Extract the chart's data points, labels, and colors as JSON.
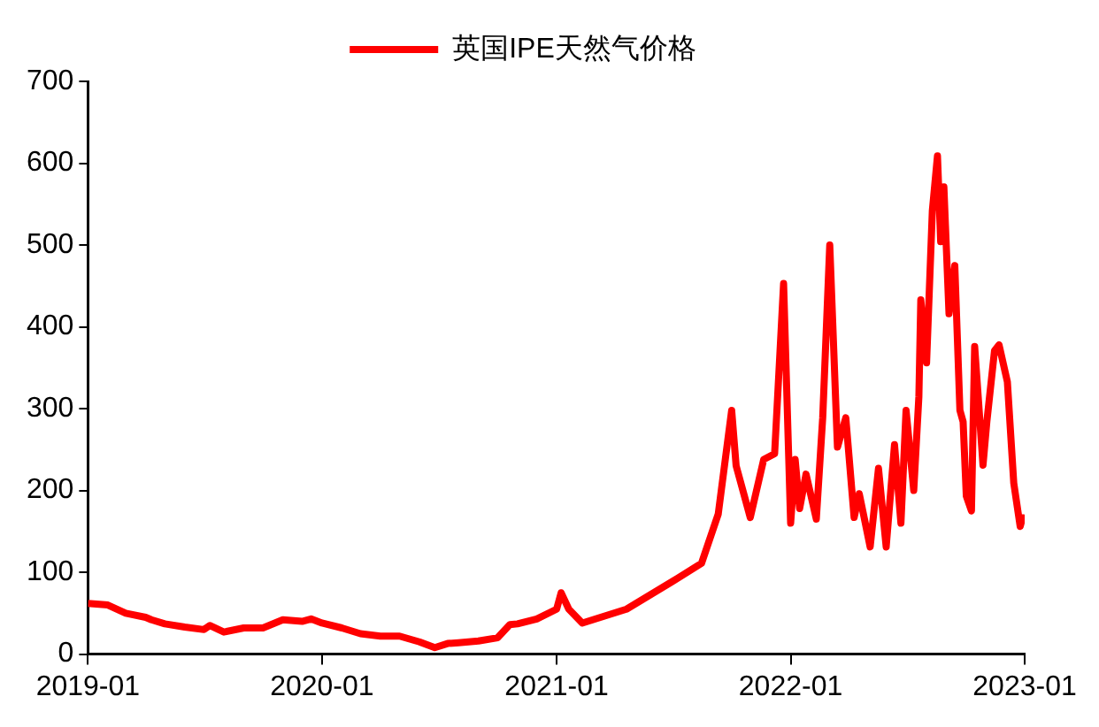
{
  "chart_data": {
    "type": "line",
    "legend": "top",
    "grid": false,
    "marker": "none",
    "line_style": "solid",
    "xlim": [
      "2019-01",
      "2023-01"
    ],
    "xticks": [
      "2019-01",
      "2020-01",
      "2021-01",
      "2022-01",
      "2023-01"
    ],
    "ylim": [
      0,
      700
    ],
    "yticks": [
      0,
      100,
      200,
      300,
      400,
      500,
      600,
      700
    ],
    "series": [
      {
        "name": "英国IPE天然气价格",
        "color": "#ff0000",
        "x": [
          "2019-01-01",
          "2019-02-01",
          "2019-03-01",
          "2019-04-01",
          "2019-04-10",
          "2019-05-01",
          "2019-06-01",
          "2019-07-01",
          "2019-07-10",
          "2019-08-01",
          "2019-09-01",
          "2019-10-01",
          "2019-11-01",
          "2019-12-01",
          "2019-12-15",
          "2020-01-01",
          "2020-02-01",
          "2020-03-01",
          "2020-04-01",
          "2020-05-01",
          "2020-06-01",
          "2020-06-25",
          "2020-07-15",
          "2020-08-01",
          "2020-09-01",
          "2020-10-01",
          "2020-10-20",
          "2020-11-01",
          "2020-12-01",
          "2021-01-01",
          "2021-01-08",
          "2021-01-20",
          "2021-02-10",
          "2021-04-20",
          "2021-07-01",
          "2021-08-15",
          "2021-09-10",
          "2021-10-01",
          "2021-10-08",
          "2021-10-30",
          "2021-11-20",
          "2021-12-07",
          "2021-12-21",
          "2022-01-01",
          "2022-01-08",
          "2022-01-15",
          "2022-01-25",
          "2022-02-10",
          "2022-02-20",
          "2022-03-03",
          "2022-03-15",
          "2022-03-28",
          "2022-04-10",
          "2022-04-18",
          "2022-05-05",
          "2022-05-18",
          "2022-05-30",
          "2022-06-12",
          "2022-06-22",
          "2022-06-30",
          "2022-07-12",
          "2022-07-20",
          "2022-07-23",
          "2022-08-01",
          "2022-08-10",
          "2022-08-18",
          "2022-08-23",
          "2022-08-28",
          "2022-09-05",
          "2022-09-14",
          "2022-09-22",
          "2022-09-27",
          "2022-10-02",
          "2022-10-10",
          "2022-10-15",
          "2022-10-28",
          "2022-11-03",
          "2022-11-15",
          "2022-11-22",
          "2022-12-05",
          "2022-12-15",
          "2022-12-25",
          "2022-12-30"
        ],
        "values": [
          62,
          60,
          50,
          45,
          42,
          37,
          33,
          30,
          35,
          27,
          32,
          32,
          42,
          40,
          43,
          38,
          32,
          25,
          22,
          22,
          15,
          8,
          13,
          14,
          16,
          20,
          36,
          37,
          43,
          55,
          75,
          55,
          38,
          55,
          89,
          111,
          171,
          298,
          230,
          167,
          238,
          245,
          453,
          160,
          238,
          178,
          220,
          165,
          289,
          500,
          253,
          289,
          167,
          196,
          131,
          227,
          131,
          256,
          160,
          298,
          200,
          315,
          433,
          356,
          542,
          609,
          504,
          571,
          416,
          475,
          298,
          284,
          193,
          175,
          376,
          231,
          284,
          371,
          378,
          333,
          209,
          156,
          171
        ]
      }
    ]
  }
}
